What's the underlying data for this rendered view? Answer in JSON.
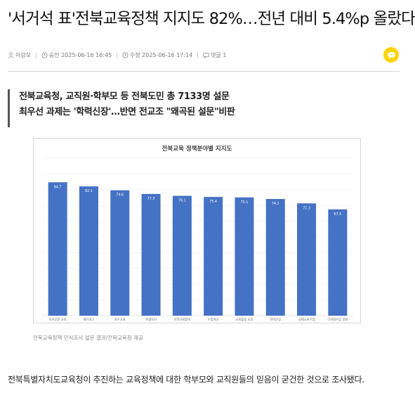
{
  "article": {
    "headline": "'서거석 표'전북교육정책 지지도 82%…전년 대비 5.4%p 올랐다",
    "meta": {
      "author": "이강모",
      "approved_label": "승인",
      "approved_time": "2025-06-16 16:45",
      "modified_label": "수정",
      "modified_time": "2025-06-16 17:14",
      "comments_label": "댓글",
      "comments_count": "1"
    },
    "subheadings": [
      "전북교육청, 교직원·학부모 등 전북도민 총 7133명 설문",
      "최우선 과제는 '학력신장'…반면 전교조 \"왜곡된 설문\"비판"
    ],
    "caption": "전북교육정책 인식조사 설문 결과/전북교육청 제공",
    "body_first_line": "전북특별자치도교육청이 추진하는 교육정책에 대한 학부모와 교직원들의 믿음이 굳건한 것으로 조사됐다."
  },
  "icons": {
    "author": "person-icon",
    "time": "clock-icon",
    "comments": "comment-icon",
    "comment_button": "speech-bubble-icon"
  },
  "colors": {
    "bar": "#4472c4",
    "comment_button": "#ffd400"
  },
  "chart_data": {
    "type": "bar",
    "title": "전북교육 정책분야별 지지도",
    "categories": [
      "독서인문 교육",
      "에듀테크",
      "학수교육",
      "학생자치",
      "지역사회협력",
      "수업혁신",
      "교육활동 보호",
      "학력신장",
      "국제교류수업",
      "디지털수업 강화"
    ],
    "values": [
      84.7,
      82.1,
      79.6,
      77.3,
      76.1,
      75.4,
      75.1,
      74.1,
      71.3,
      67.5
    ],
    "xlabel": "",
    "ylabel": "",
    "ylim": [
      0,
      100
    ],
    "grid": true
  }
}
